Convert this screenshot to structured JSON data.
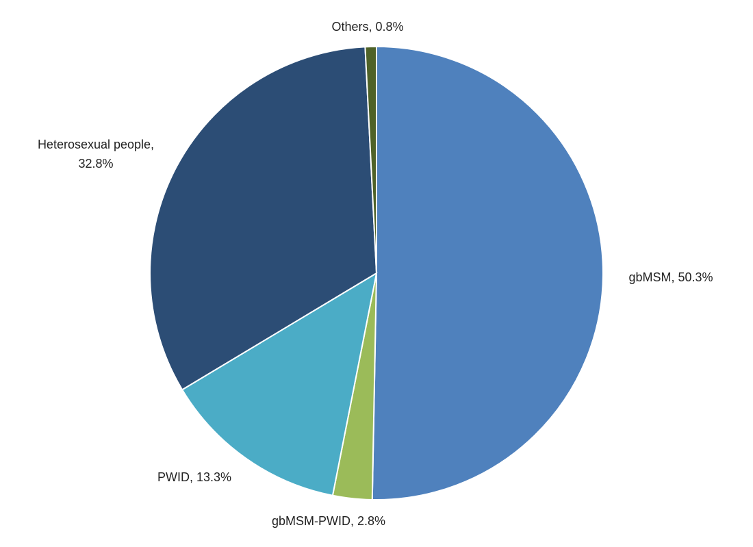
{
  "chart_data": {
    "type": "pie",
    "values": [
      50.3,
      2.8,
      13.3,
      32.8,
      0.8
    ],
    "value_labels": [
      "gbMSM, 50.3%",
      "gbMSM-PWID, 2.8%",
      "PWID, 13.3%",
      "Heterosexual people, 32.8%",
      "Others, 0.8%"
    ],
    "colors": [
      "#4f81bd",
      "#9bbb59",
      "#4bacc6",
      "#2c4d75",
      "#4f6228"
    ]
  }
}
